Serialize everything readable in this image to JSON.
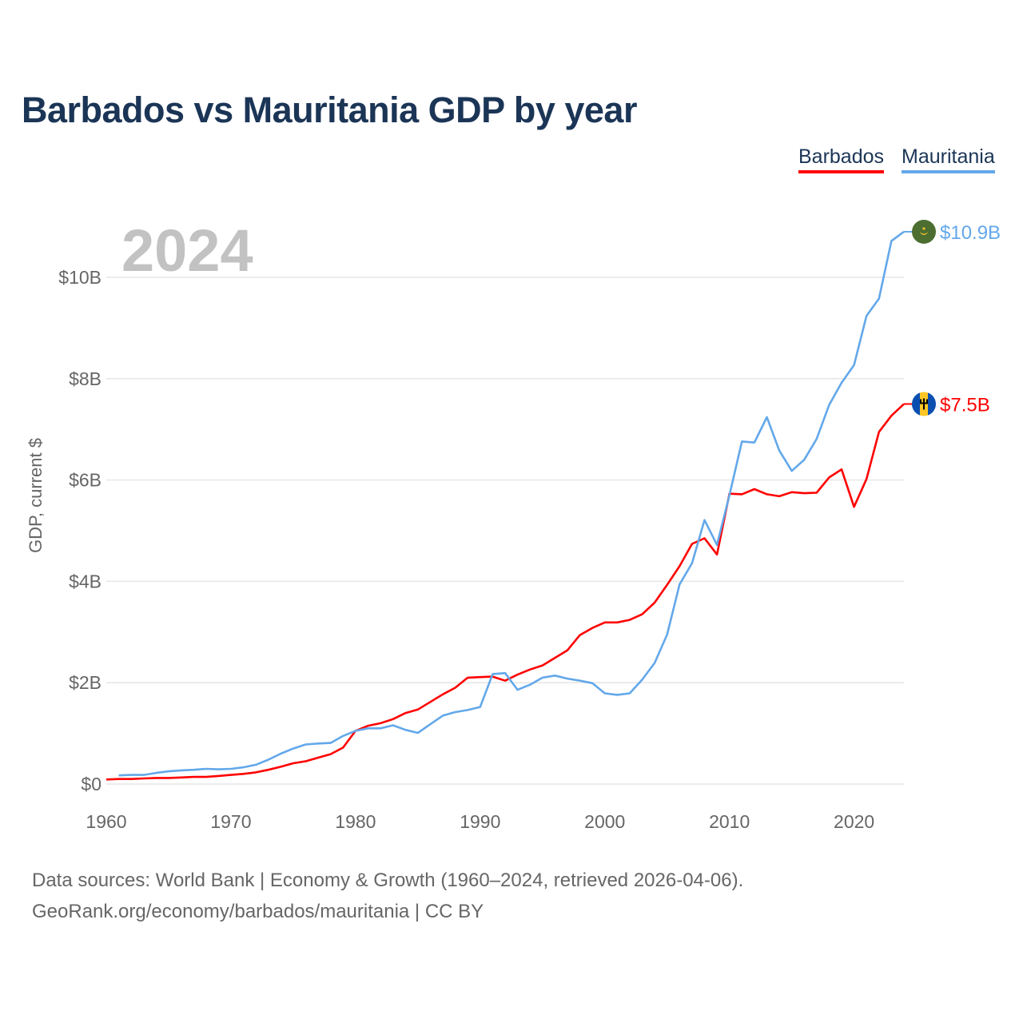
{
  "title": "Barbados vs Mauritania GDP by year",
  "footer": {
    "line1": "Data sources: World Bank | Economy & Growth (1960–2024, retrieved 2026-04-06).",
    "line2": "GeoRank.org/economy/barbados/mauritania | CC BY"
  },
  "chart_data": {
    "type": "line",
    "title": "Barbados vs Mauritania GDP by year",
    "xlabel": "",
    "ylabel": "GDP, current $",
    "year_label": "2024",
    "xlim": [
      1960,
      2024
    ],
    "ylim": [
      0,
      11
    ],
    "x_ticks": [
      1960,
      1970,
      1980,
      1990,
      2000,
      2010,
      2020
    ],
    "y_ticks": [
      0,
      2,
      4,
      6,
      8,
      10
    ],
    "y_tick_labels": [
      "$0",
      "$2B",
      "$4B",
      "$6B",
      "$8B",
      "$10B"
    ],
    "grid": true,
    "legend_position": "top-right",
    "units": "billion USD",
    "series": [
      {
        "name": "Barbados",
        "color": "#ff0000",
        "flag": "barbados-flag",
        "end_label": "$7.5B",
        "start_year": 1960,
        "values": [
          0.09,
          0.1,
          0.1,
          0.11,
          0.12,
          0.12,
          0.13,
          0.14,
          0.14,
          0.16,
          0.18,
          0.2,
          0.23,
          0.28,
          0.34,
          0.41,
          0.45,
          0.52,
          0.59,
          0.72,
          1.05,
          1.15,
          1.2,
          1.28,
          1.4,
          1.47,
          1.62,
          1.77,
          1.9,
          2.1,
          2.11,
          2.12,
          2.04,
          2.16,
          2.26,
          2.34,
          2.49,
          2.64,
          2.94,
          3.08,
          3.19,
          3.19,
          3.24,
          3.35,
          3.58,
          3.93,
          4.3,
          4.74,
          4.85,
          4.53,
          5.73,
          5.72,
          5.82,
          5.72,
          5.68,
          5.76,
          5.74,
          5.75,
          6.05,
          6.21,
          5.47,
          6.02,
          6.95,
          7.27,
          7.5
        ]
      },
      {
        "name": "Mauritania",
        "color": "#63a8ea",
        "flag": "mauritania-flag",
        "end_label": "$10.9B",
        "start_year": 1961,
        "values": [
          0.17,
          0.18,
          0.18,
          0.22,
          0.25,
          0.27,
          0.28,
          0.3,
          0.29,
          0.3,
          0.33,
          0.38,
          0.48,
          0.6,
          0.7,
          0.78,
          0.8,
          0.81,
          0.95,
          1.05,
          1.1,
          1.1,
          1.16,
          1.07,
          1.01,
          1.18,
          1.35,
          1.42,
          1.46,
          1.52,
          2.17,
          2.19,
          1.86,
          1.96,
          2.1,
          2.14,
          2.08,
          2.04,
          1.99,
          1.79,
          1.76,
          1.79,
          2.06,
          2.39,
          2.95,
          3.94,
          4.36,
          5.21,
          4.72,
          5.7,
          6.76,
          6.74,
          7.24,
          6.58,
          6.18,
          6.4,
          6.81,
          7.48,
          7.92,
          8.27,
          9.24,
          9.58,
          10.72,
          10.9
        ]
      }
    ]
  }
}
